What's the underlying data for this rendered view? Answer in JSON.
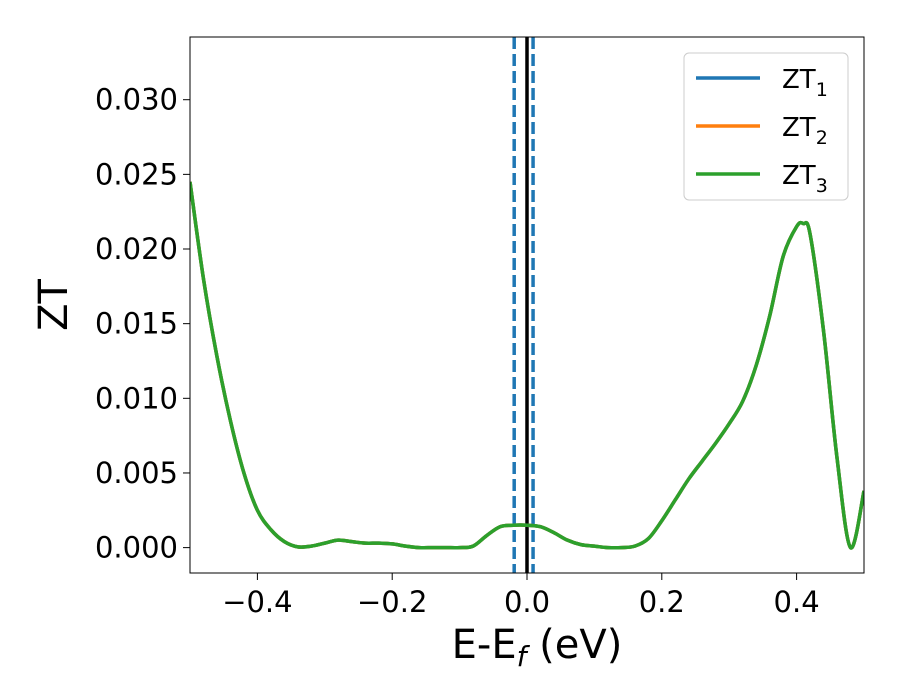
{
  "chart_data": {
    "type": "line",
    "xlabel": "E-E",
    "xlabel_sub": "f",
    "xlabel_unit": " (eV)",
    "ylabel": "ZT",
    "xlim": [
      -0.5,
      0.5
    ],
    "ylim": [
      -0.0017,
      0.0342
    ],
    "xticks": [
      -0.4,
      -0.2,
      0.0,
      0.2,
      0.4
    ],
    "xtick_labels": [
      "−0.4",
      "−0.2",
      "0.0",
      "0.2",
      "0.4"
    ],
    "yticks": [
      0.0,
      0.005,
      0.01,
      0.015,
      0.02,
      0.025,
      0.03
    ],
    "ytick_labels": [
      "0.000",
      "0.005",
      "0.010",
      "0.015",
      "0.020",
      "0.025",
      "0.030"
    ],
    "legend_position": "top-right",
    "vlines": [
      {
        "x": -0.019,
        "style": "dashed",
        "color": "#1f77b4"
      },
      {
        "x": 0.009,
        "style": "dashed",
        "color": "#1f77b4"
      },
      {
        "x": 0.0,
        "style": "solid",
        "color": "#000000"
      }
    ],
    "x": [
      -0.5,
      -0.48,
      -0.46,
      -0.44,
      -0.42,
      -0.4,
      -0.38,
      -0.36,
      -0.34,
      -0.32,
      -0.3,
      -0.28,
      -0.26,
      -0.24,
      -0.22,
      -0.2,
      -0.18,
      -0.16,
      -0.14,
      -0.12,
      -0.1,
      -0.08,
      -0.06,
      -0.04,
      -0.02,
      0.0,
      0.02,
      0.04,
      0.06,
      0.08,
      0.1,
      0.12,
      0.14,
      0.16,
      0.18,
      0.2,
      0.22,
      0.24,
      0.26,
      0.28,
      0.3,
      0.32,
      0.34,
      0.36,
      0.38,
      0.4,
      0.41,
      0.42,
      0.44,
      0.46,
      0.48,
      0.5
    ],
    "series": [
      {
        "name": "ZT",
        "sub": "1",
        "color": "#1f77b4",
        "values": [
          0.0245,
          0.018,
          0.0128,
          0.0085,
          0.005,
          0.0025,
          0.0012,
          0.0004,
          5e-05,
          0.0001,
          0.0003,
          0.0005,
          0.0004,
          0.0003,
          0.0003,
          0.00025,
          0.0001,
          0.0,
          0.0,
          0.0,
          0.0,
          0.0001,
          0.0008,
          0.0014,
          0.0015,
          0.0015,
          0.0014,
          0.001,
          0.0005,
          0.0002,
          0.0001,
          0.0,
          0.0,
          0.0001,
          0.0006,
          0.0018,
          0.0032,
          0.0046,
          0.0058,
          0.007,
          0.0083,
          0.0098,
          0.0122,
          0.0155,
          0.0195,
          0.0215,
          0.0217,
          0.021,
          0.0145,
          0.006,
          0.0,
          0.0038
        ]
      },
      {
        "name": "ZT",
        "sub": "2",
        "color": "#ff7f0e",
        "values": [
          0.0245,
          0.018,
          0.0128,
          0.0085,
          0.005,
          0.0025,
          0.0012,
          0.0004,
          5e-05,
          0.0001,
          0.0003,
          0.0005,
          0.0004,
          0.0003,
          0.0003,
          0.00025,
          0.0001,
          0.0,
          0.0,
          0.0,
          0.0,
          0.0001,
          0.0008,
          0.0014,
          0.0015,
          0.0015,
          0.0014,
          0.001,
          0.0005,
          0.0002,
          0.0001,
          0.0,
          0.0,
          0.0001,
          0.0006,
          0.0018,
          0.0032,
          0.0046,
          0.0058,
          0.007,
          0.0083,
          0.0098,
          0.0122,
          0.0155,
          0.0195,
          0.0215,
          0.0217,
          0.021,
          0.0145,
          0.006,
          0.0,
          0.0038
        ]
      },
      {
        "name": "ZT",
        "sub": "3",
        "color": "#2ca02c",
        "values": [
          0.0245,
          0.018,
          0.0128,
          0.0085,
          0.005,
          0.0025,
          0.0012,
          0.0004,
          5e-05,
          0.0001,
          0.0003,
          0.0005,
          0.0004,
          0.0003,
          0.0003,
          0.00025,
          0.0001,
          0.0,
          0.0,
          0.0,
          0.0,
          0.0001,
          0.0008,
          0.0014,
          0.0015,
          0.0015,
          0.0014,
          0.001,
          0.0005,
          0.0002,
          0.0001,
          0.0,
          0.0,
          0.0001,
          0.0006,
          0.0018,
          0.0032,
          0.0046,
          0.0058,
          0.007,
          0.0083,
          0.0098,
          0.0122,
          0.0155,
          0.0195,
          0.0215,
          0.0217,
          0.021,
          0.0145,
          0.006,
          0.0,
          0.0038
        ]
      }
    ]
  }
}
